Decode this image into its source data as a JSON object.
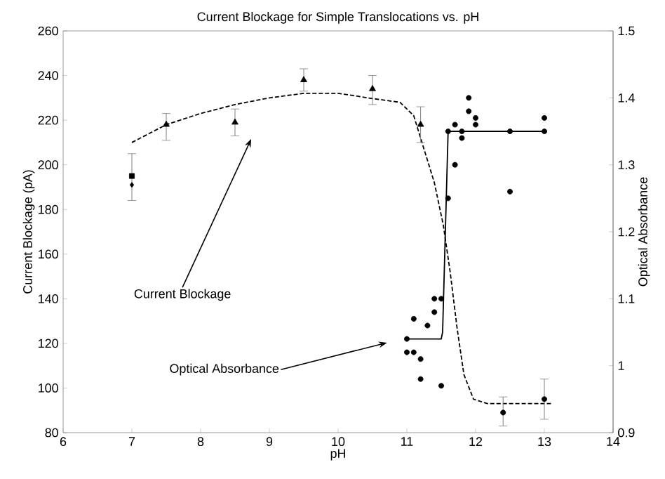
{
  "chart_data": {
    "type": "scatter",
    "title": "Current Blockage for Simple Translocations vs. pH",
    "xlabel": "pH",
    "ylabel": "Current Blockage (pA)",
    "y2label": "Optical Absorbance",
    "xlim": [
      6,
      14
    ],
    "xticks": [
      6,
      7,
      8,
      9,
      10,
      11,
      12,
      13,
      14
    ],
    "ylim": [
      80,
      260
    ],
    "yticks": [
      80,
      100,
      120,
      140,
      160,
      180,
      200,
      220,
      240,
      260
    ],
    "y2lim": [
      0.9,
      1.5
    ],
    "y2ticks": [
      0.9,
      1,
      1.1,
      1.2,
      1.3,
      1.4,
      1.5
    ],
    "grid": false,
    "series": [
      {
        "type": "line",
        "line_style": "dashed",
        "marker": "none",
        "color": "#000000",
        "x": [
          7,
          7.5,
          8,
          8.5,
          9,
          9.5,
          10,
          10.23,
          10.43,
          10.9,
          11.1,
          11.23,
          11.4,
          11.53,
          11.63,
          11.73,
          11.83,
          11.97,
          12.17,
          13.1
        ],
        "values": [
          210,
          218,
          223,
          227,
          230,
          232,
          232,
          231,
          230,
          228,
          222,
          209,
          192,
          173,
          152,
          127,
          106,
          95,
          93,
          93
        ]
      },
      {
        "marker": "triangle",
        "color": "#000000",
        "x": [
          7.5,
          8.5,
          9.5,
          10.5,
          11.2
        ],
        "values": [
          218,
          219,
          238,
          234,
          218
        ],
        "errors": [
          [
            211,
            223
          ],
          [
            213,
            225
          ],
          [
            233,
            243
          ],
          [
            227,
            240
          ],
          [
            210,
            226
          ]
        ]
      },
      {
        "marker": "square",
        "color": "#000000",
        "x": [
          7
        ],
        "values": [
          195
        ],
        "errors": [
          [
            184,
            205
          ]
        ]
      },
      {
        "marker": "diamond",
        "color": "#000000",
        "x": [
          7
        ],
        "values": [
          191
        ]
      },
      {
        "marker": "circle",
        "color": "#000000",
        "x": [
          12.4,
          13
        ],
        "values": [
          89,
          95
        ],
        "errors": [
          [
            83,
            96
          ],
          [
            86,
            104
          ]
        ]
      },
      {
        "marker": "circle",
        "axis": "y2",
        "color": "#000000",
        "x": [
          11,
          11,
          11.1,
          11.1,
          11.2,
          11.2,
          11.3,
          11.4,
          11.4,
          11.5,
          11.5,
          11.6,
          11.6,
          11.7,
          11.7,
          11.8,
          11.8,
          11.9,
          11.9,
          12,
          12,
          12.5,
          12.5,
          13,
          13
        ],
        "values": [
          1.04,
          1.02,
          1.07,
          1.02,
          1.01,
          0.98,
          1.06,
          1.1,
          1.08,
          1.1,
          0.97,
          1.25,
          1.35,
          1.36,
          1.3,
          1.35,
          1.34,
          1.4,
          1.38,
          1.37,
          1.36,
          1.35,
          1.26,
          1.37,
          1.35
        ]
      },
      {
        "type": "line",
        "line_style": "solid",
        "marker": "none",
        "axis": "y2",
        "color": "#000000",
        "x": [
          11,
          11.5,
          11.52,
          11.6,
          13
        ],
        "values": [
          1.04,
          1.04,
          1.05,
          1.35,
          1.35
        ]
      }
    ],
    "annotations": [
      "Current Blockage",
      "Optical Absorbance"
    ]
  }
}
